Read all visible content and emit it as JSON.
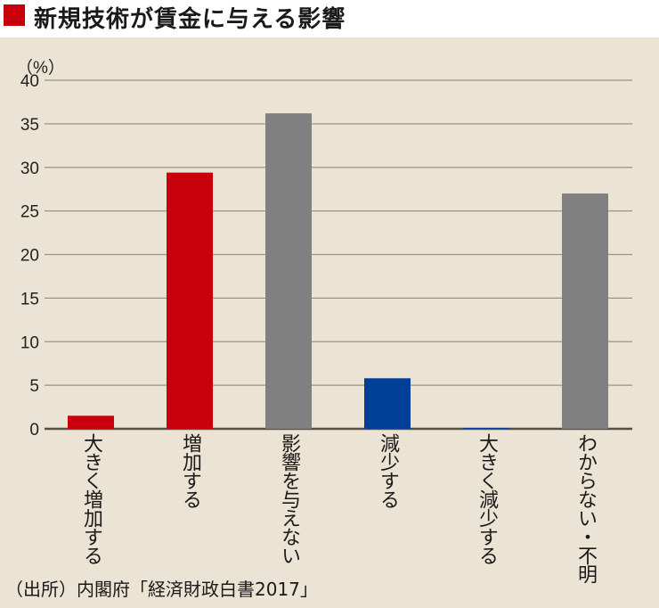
{
  "chart_data": {
    "type": "bar",
    "title": "新規技術が賃金に与える影響",
    "ylabel": "（%）",
    "xlabel": "",
    "ylim": [
      0,
      40
    ],
    "yticks": [
      0,
      5,
      10,
      15,
      20,
      25,
      30,
      35,
      40
    ],
    "grid": true,
    "categories": [
      "大きく増加する",
      "増加する",
      "影響を与えない",
      "減少する",
      "大きく減少する",
      "わからない・不明"
    ],
    "values": [
      1.5,
      29.4,
      36.2,
      5.8,
      0.1,
      27.0
    ],
    "colors": [
      "#c8000b",
      "#c8000b",
      "#808080",
      "#003f98",
      "#003f98",
      "#808080"
    ],
    "source": "（出所）内閣府「経済財政白書2017」"
  },
  "colors": {
    "accent": "#c8000b",
    "background": "#ebe4d4",
    "grid": "#9a9484"
  }
}
